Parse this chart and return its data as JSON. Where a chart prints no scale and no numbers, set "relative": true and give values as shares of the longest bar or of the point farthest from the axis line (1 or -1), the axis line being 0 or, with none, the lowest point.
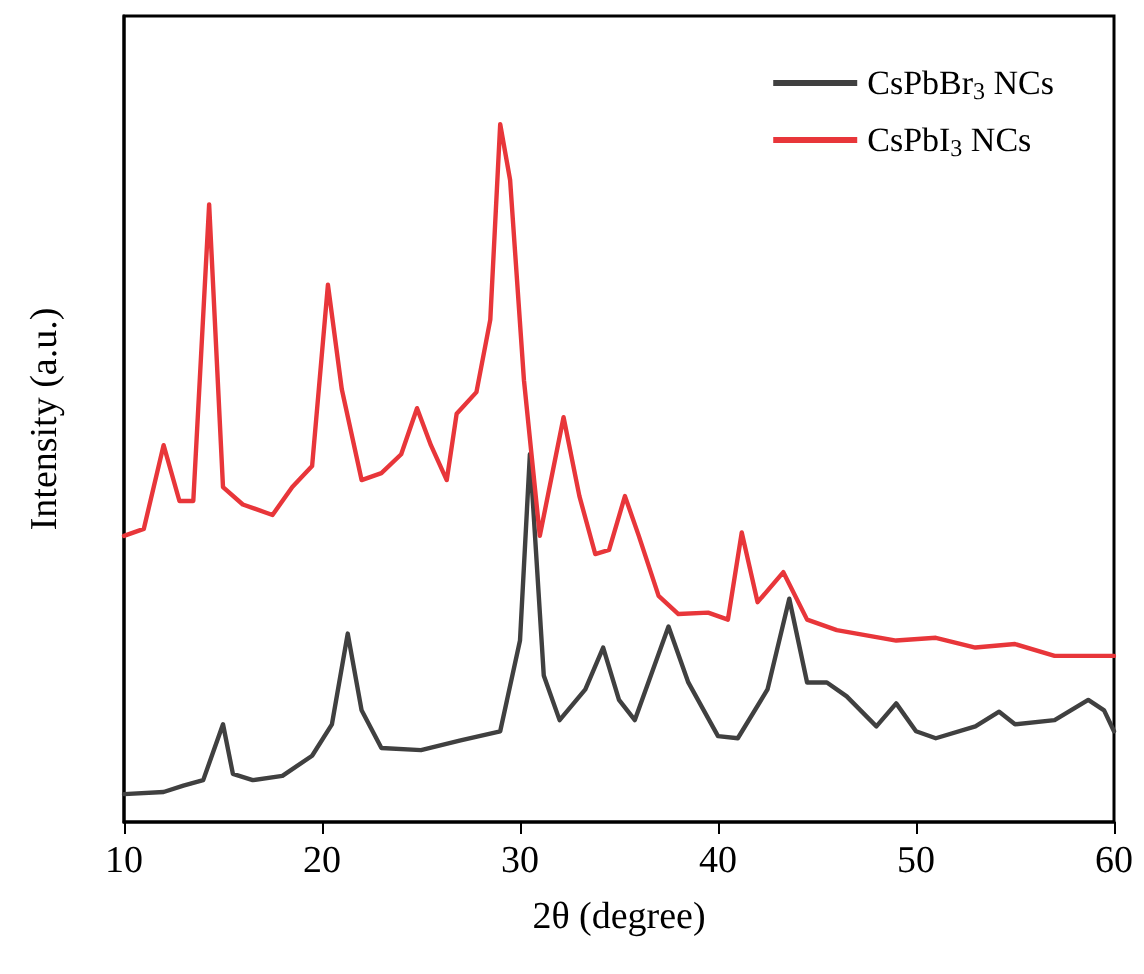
{
  "chart_data": {
    "type": "line",
    "xlabel": "2θ (degree)",
    "ylabel": "Intensity (a.u.)",
    "relative": true,
    "xlim": [
      10,
      60
    ],
    "xticks": [
      10,
      20,
      30,
      40,
      50,
      60
    ],
    "legend": "top right",
    "grid": false,
    "marker": "none",
    "line_style": "solid",
    "series": [
      {
        "name": "CsPbBr$_{3}$ NCs",
        "color": "#404040",
        "x": [
          10,
          12,
          13,
          14,
          15,
          15.5,
          16.5,
          18,
          19.5,
          20.5,
          21.3,
          22,
          23,
          25,
          27,
          29,
          30,
          30.5,
          31.2,
          32,
          33.3,
          34.2,
          35,
          35.8,
          37.5,
          38.5,
          40,
          41,
          42.5,
          43.6,
          44.5,
          45.5,
          46.5,
          48,
          49,
          50,
          51,
          53,
          54.2,
          55,
          57,
          58.7,
          59.5,
          60
        ],
        "values": [
          0.04,
          0.043,
          0.052,
          0.06,
          0.14,
          0.069,
          0.06,
          0.066,
          0.095,
          0.14,
          0.27,
          0.16,
          0.106,
          0.103,
          0.117,
          0.13,
          0.26,
          0.527,
          0.21,
          0.146,
          0.19,
          0.25,
          0.175,
          0.146,
          0.28,
          0.2,
          0.123,
          0.12,
          0.19,
          0.32,
          0.2,
          0.2,
          0.18,
          0.137,
          0.17,
          0.13,
          0.12,
          0.137,
          0.158,
          0.14,
          0.146,
          0.175,
          0.16,
          0.13
        ]
      },
      {
        "name": "CsPbI$_{3}$ NCs",
        "color": "#e8363a",
        "x": [
          10,
          11,
          12,
          12.8,
          13.5,
          14.3,
          15,
          16,
          17.5,
          18.5,
          19.5,
          20.3,
          21,
          22,
          23,
          24,
          24.8,
          25.5,
          26.3,
          26.8,
          27.8,
          28.5,
          29,
          29.5,
          30.2,
          31,
          32.2,
          33,
          33.8,
          34.5,
          35.3,
          36,
          37,
          38,
          39.5,
          40.5,
          41.2,
          42,
          43.3,
          44.5,
          46,
          47,
          49,
          51,
          53,
          55,
          57,
          60
        ],
        "values": [
          0.41,
          0.42,
          0.54,
          0.46,
          0.46,
          0.885,
          0.48,
          0.455,
          0.44,
          0.48,
          0.51,
          0.77,
          0.62,
          0.49,
          0.5,
          0.527,
          0.593,
          0.54,
          0.49,
          0.585,
          0.616,
          0.72,
          1,
          0.92,
          0.633,
          0.41,
          0.58,
          0.467,
          0.384,
          0.39,
          0.467,
          0.41,
          0.324,
          0.298,
          0.3,
          0.29,
          0.415,
          0.315,
          0.358,
          0.29,
          0.275,
          0.27,
          0.26,
          0.264,
          0.25,
          0.255,
          0.238,
          0.238
        ]
      }
    ]
  }
}
